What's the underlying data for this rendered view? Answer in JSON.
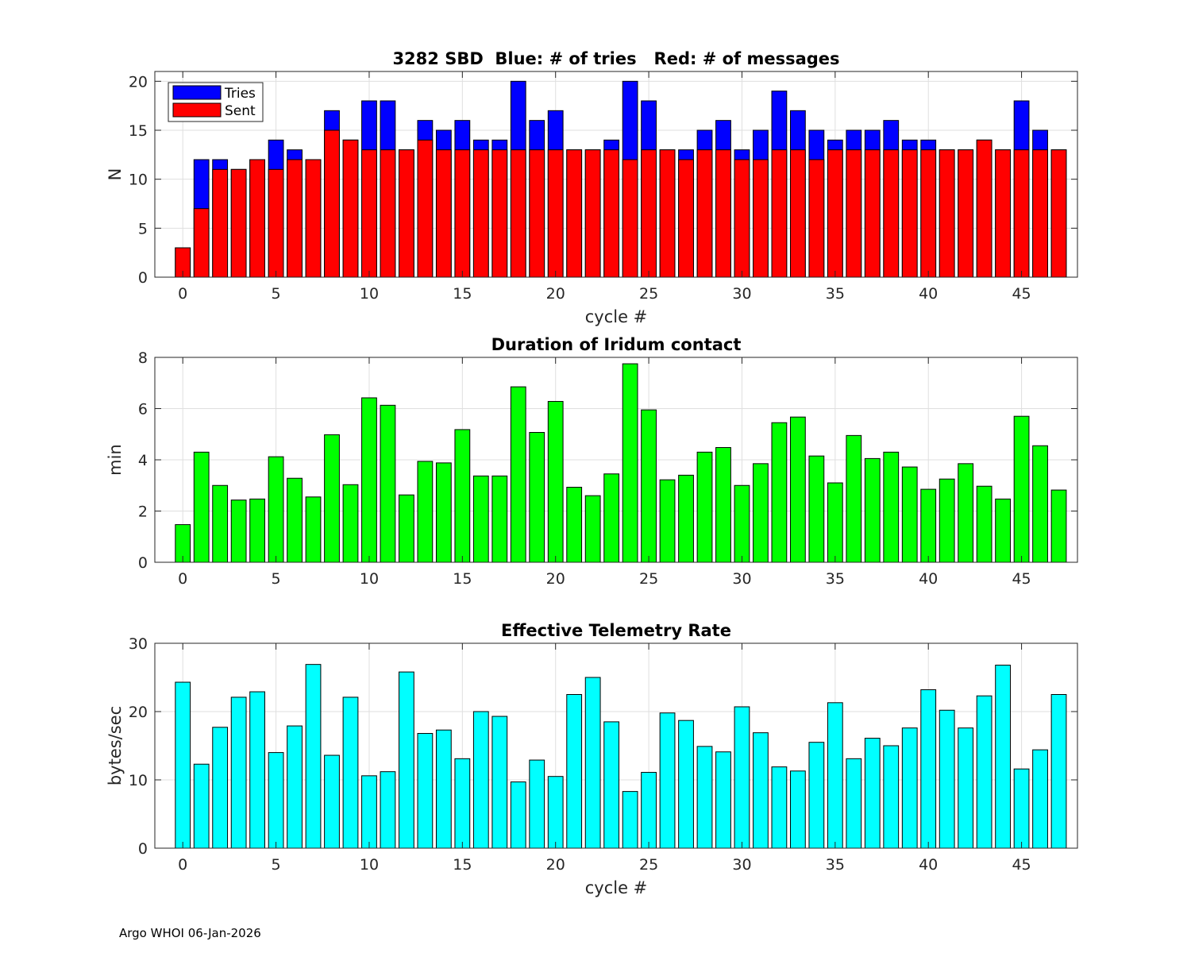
{
  "footer": "Argo WHOI 06-Jan-2026",
  "chart_data": [
    {
      "type": "bar",
      "title": "3282 SBD  Blue: # of tries   Red: # of messages",
      "xlabel": "cycle #",
      "ylabel": "N",
      "xlim": [
        -1.5,
        48
      ],
      "ylim": [
        0,
        21
      ],
      "xticks": [
        0,
        5,
        10,
        15,
        20,
        25,
        30,
        35,
        40,
        45
      ],
      "yticks": [
        0,
        5,
        10,
        15,
        20
      ],
      "grid": true,
      "legend_position": "top-left",
      "x": [
        0,
        1,
        2,
        3,
        4,
        5,
        6,
        7,
        8,
        9,
        10,
        11,
        12,
        13,
        14,
        15,
        16,
        17,
        18,
        19,
        20,
        21,
        22,
        23,
        24,
        25,
        26,
        27,
        28,
        29,
        30,
        31,
        32,
        33,
        34,
        35,
        36,
        37,
        38,
        39,
        40,
        41,
        42,
        43,
        44,
        45,
        46,
        47
      ],
      "series": [
        {
          "name": "Tries",
          "color": "#0000ff",
          "values": [
            3,
            12,
            12,
            11,
            12,
            14,
            13,
            12,
            17,
            14,
            18,
            18,
            13,
            16,
            15,
            16,
            14,
            14,
            20,
            16,
            17,
            13,
            13,
            14,
            20,
            18,
            13,
            13,
            15,
            16,
            13,
            15,
            19,
            17,
            15,
            14,
            15,
            15,
            16,
            14,
            14,
            13,
            13,
            14,
            13,
            18,
            15,
            13
          ]
        },
        {
          "name": "Sent",
          "color": "#ff0000",
          "values": [
            3,
            7,
            11,
            11,
            12,
            11,
            12,
            12,
            15,
            14,
            13,
            13,
            13,
            14,
            13,
            13,
            13,
            13,
            13,
            13,
            13,
            13,
            13,
            13,
            12,
            13,
            13,
            12,
            13,
            13,
            12,
            12,
            13,
            13,
            12,
            13,
            13,
            13,
            13,
            13,
            13,
            13,
            13,
            14,
            13,
            13,
            13,
            13
          ]
        }
      ]
    },
    {
      "type": "bar",
      "title": "Duration of Iridum contact",
      "xlabel": "",
      "ylabel": "min",
      "xlim": [
        -1.5,
        48
      ],
      "ylim": [
        0,
        8
      ],
      "xticks": [
        0,
        5,
        10,
        15,
        20,
        25,
        30,
        35,
        40,
        45
      ],
      "yticks": [
        0,
        2,
        4,
        6,
        8
      ],
      "grid": true,
      "color": "#00ff00",
      "x": [
        -1,
        0,
        1,
        2,
        3,
        4,
        5,
        6,
        7,
        8,
        9,
        10,
        11,
        12,
        13,
        14,
        15,
        16,
        17,
        18,
        19,
        20,
        21,
        22,
        23,
        24,
        25,
        26,
        27,
        28,
        29,
        30,
        31,
        32,
        33,
        34,
        35,
        36,
        37,
        38,
        39,
        40,
        41,
        42,
        43,
        44,
        45,
        46,
        47
      ],
      "values": [
        0,
        1.47,
        4.3,
        3.0,
        2.43,
        2.47,
        4.12,
        3.28,
        2.55,
        4.98,
        3.03,
        6.42,
        6.13,
        2.63,
        3.94,
        3.88,
        5.18,
        3.37,
        3.37,
        6.85,
        5.07,
        6.28,
        2.93,
        2.6,
        3.45,
        7.75,
        5.95,
        3.22,
        3.4,
        4.3,
        4.48,
        3.0,
        3.85,
        5.45,
        5.67,
        4.15,
        3.1,
        4.95,
        4.05,
        4.3,
        3.72,
        2.85,
        3.25,
        3.85,
        2.97,
        2.47,
        5.7,
        4.55,
        2.82
      ]
    },
    {
      "type": "bar",
      "title": "Effective Telemetry Rate",
      "xlabel": "cycle #",
      "ylabel": "bytes/sec",
      "xlim": [
        -1.5,
        48
      ],
      "ylim": [
        0,
        30
      ],
      "xticks": [
        0,
        5,
        10,
        15,
        20,
        25,
        30,
        35,
        40,
        45
      ],
      "yticks": [
        0,
        10,
        20,
        30
      ],
      "grid": true,
      "color": "#00ffff",
      "x": [
        0,
        1,
        2,
        3,
        4,
        5,
        6,
        7,
        8,
        9,
        10,
        11,
        12,
        13,
        14,
        15,
        16,
        17,
        18,
        19,
        20,
        21,
        22,
        23,
        24,
        25,
        26,
        27,
        28,
        29,
        30,
        31,
        32,
        33,
        34,
        35,
        36,
        37,
        38,
        39,
        40,
        41,
        42,
        43,
        44,
        45,
        46,
        47
      ],
      "values": [
        24.3,
        12.3,
        17.7,
        22.1,
        22.9,
        14.0,
        17.9,
        26.9,
        13.6,
        22.1,
        10.6,
        11.2,
        25.8,
        16.8,
        17.3,
        13.1,
        20.0,
        19.3,
        9.7,
        12.9,
        10.5,
        22.5,
        25.0,
        18.5,
        8.3,
        11.1,
        19.8,
        18.7,
        14.9,
        14.1,
        20.7,
        16.9,
        11.9,
        11.3,
        15.5,
        21.3,
        13.1,
        16.1,
        15.0,
        17.6,
        23.2,
        20.2,
        17.6,
        22.3,
        26.8,
        11.6,
        14.4,
        22.5
      ]
    }
  ]
}
